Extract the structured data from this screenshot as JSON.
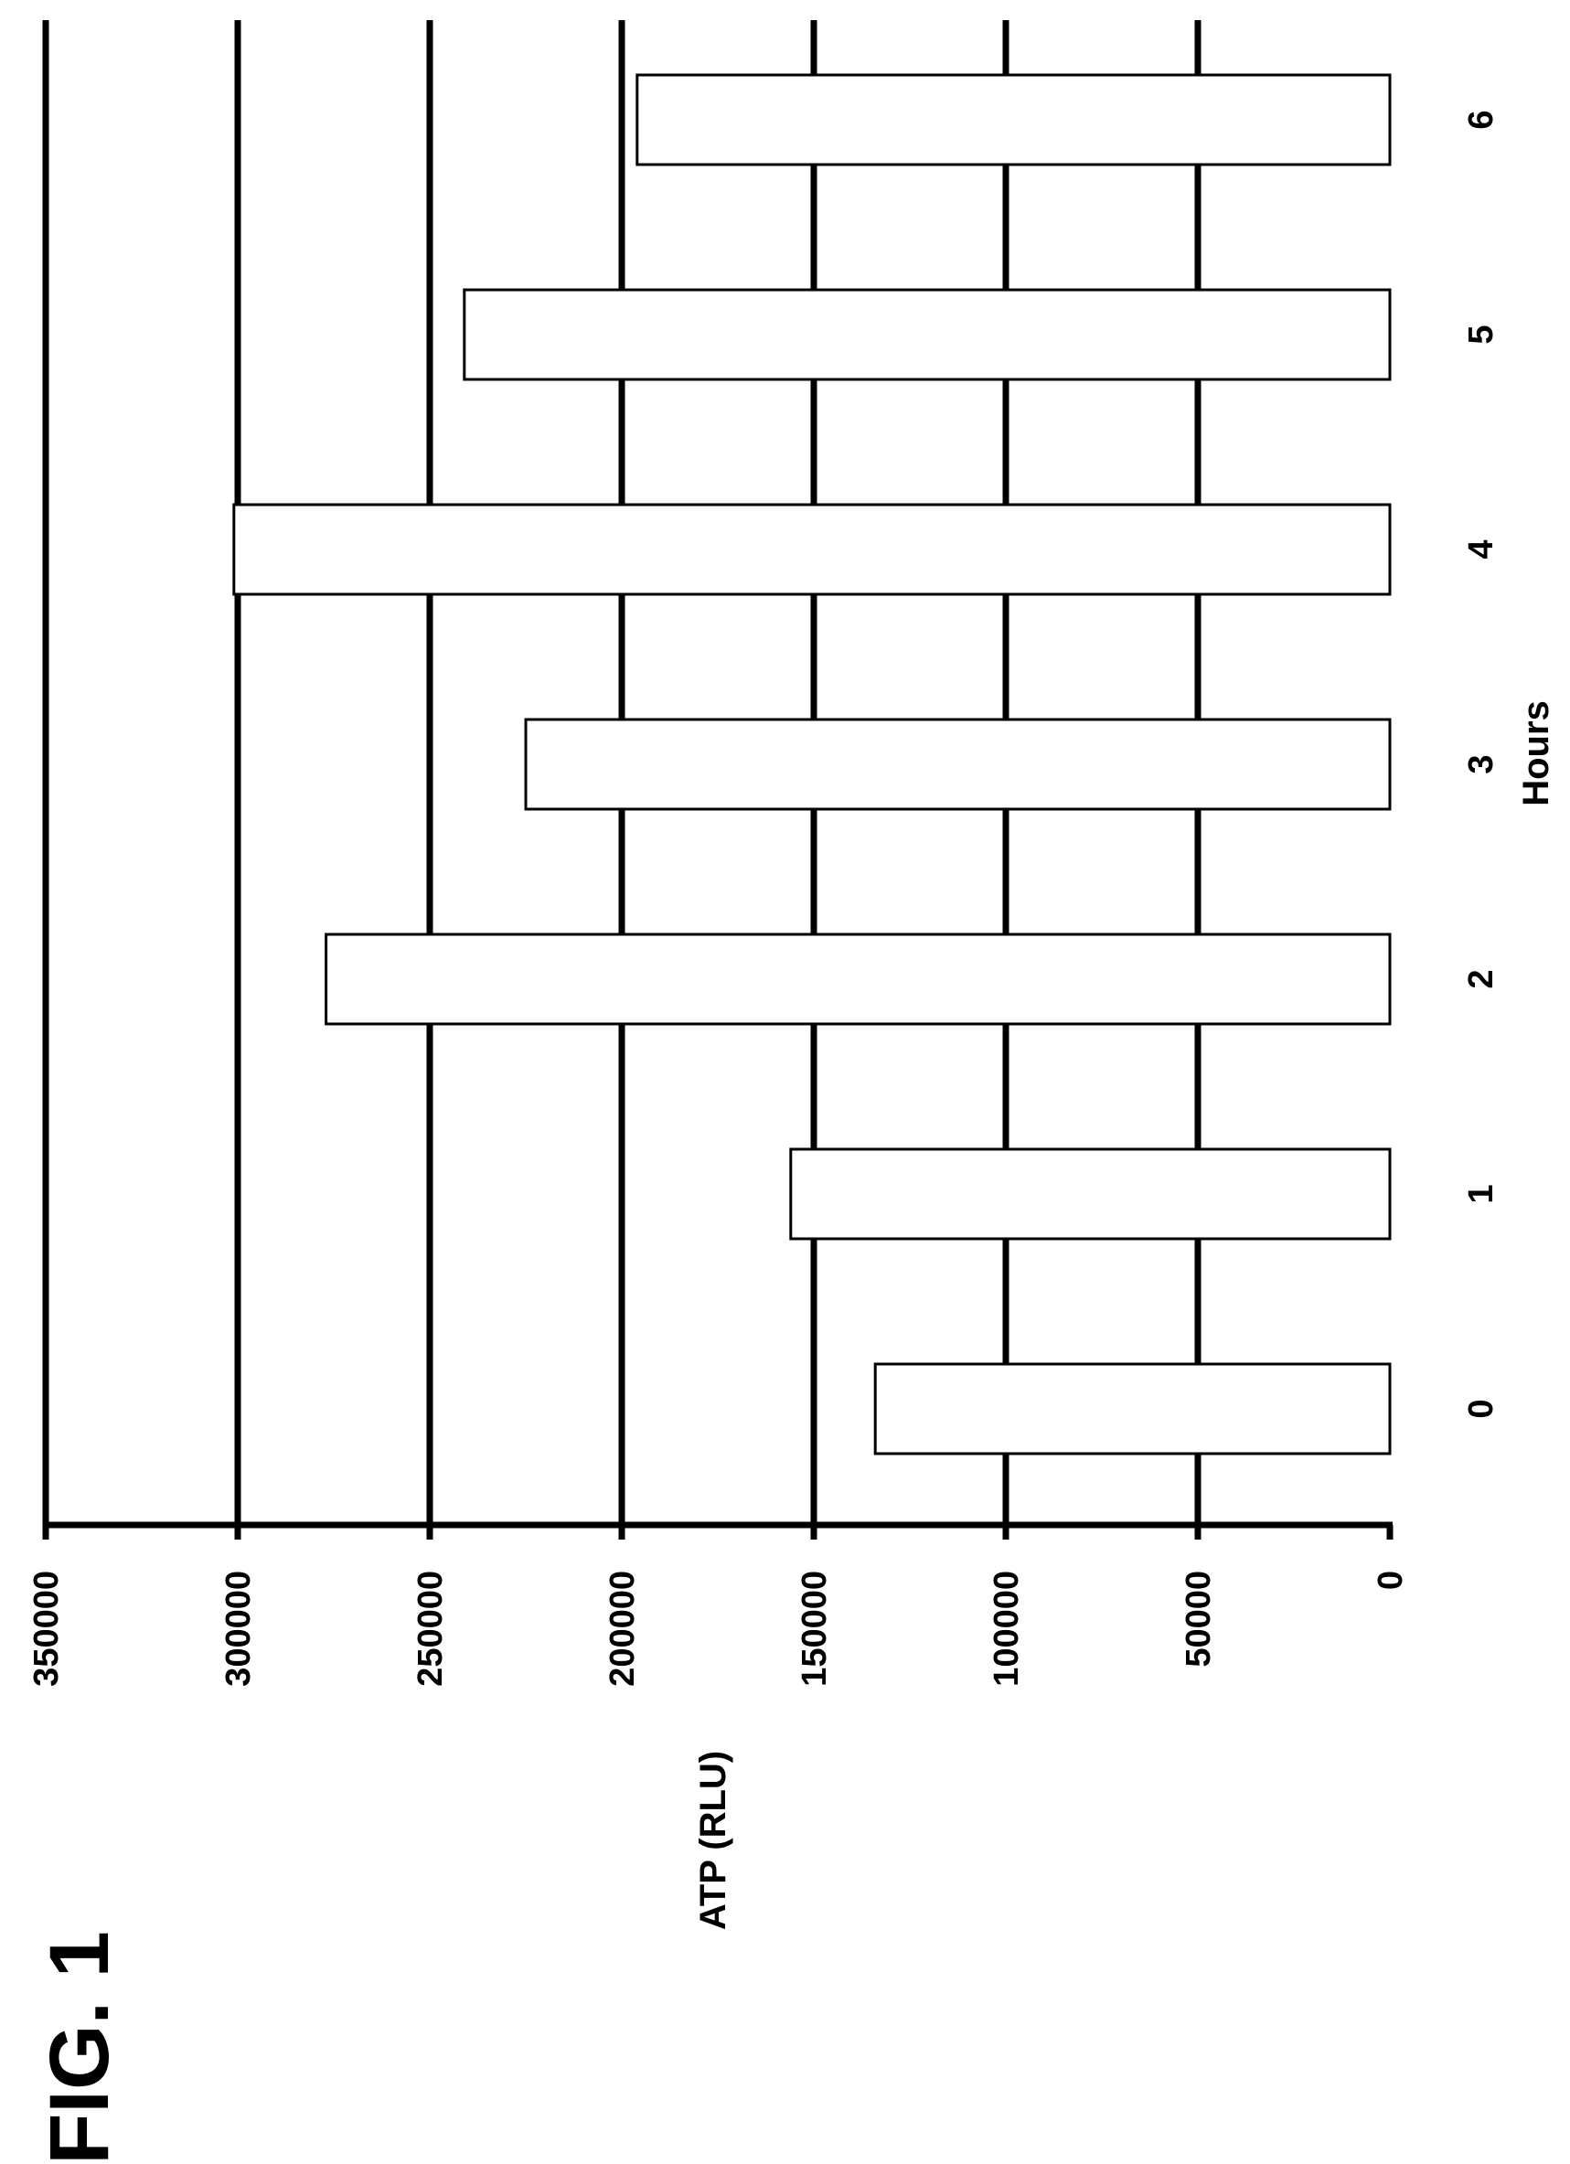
{
  "figure_label": "FIG. 1",
  "chart_data": {
    "type": "bar",
    "orientation": "rotated-90-ccw",
    "xlabel": "Hours",
    "ylabel": "ATP (RLU)",
    "categories": [
      "0",
      "1",
      "2",
      "3",
      "4",
      "5",
      "6"
    ],
    "values": [
      134000,
      156000,
      277000,
      225000,
      301000,
      241000,
      196000
    ],
    "ylim": [
      0,
      350000
    ],
    "yticks": [
      0,
      50000,
      100000,
      150000,
      200000,
      250000,
      300000,
      350000
    ],
    "ytick_labels": [
      "0",
      "50000",
      "100000",
      "150000",
      "200000",
      "250000",
      "300000",
      "350000"
    ],
    "grid": true,
    "legend": "none",
    "colors": {
      "bar_fill": "#ffffff",
      "bar_stroke": "#000000",
      "grid": "#000000"
    }
  }
}
